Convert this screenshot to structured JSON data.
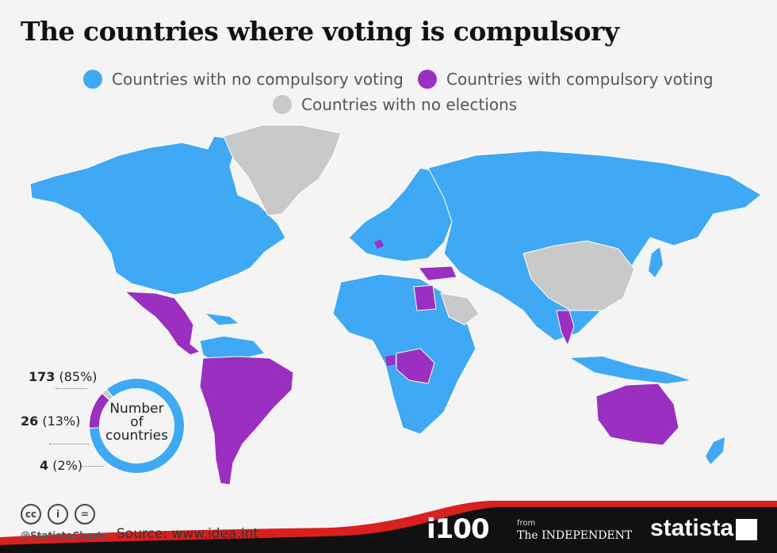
{
  "title": "The countries where voting is compulsory",
  "legend": [
    {
      "label": "Countries with no compulsory voting",
      "color": "#3fa9f5"
    },
    {
      "label": "Countries with compulsory voting",
      "color": "#9a2fc2"
    },
    {
      "label": "Countries with no elections",
      "color": "#c9c9c9"
    }
  ],
  "colors": {
    "no_compulsory": "#3fa9f5",
    "compulsory": "#9a2fc2",
    "no_elections": "#c9c9c9",
    "footer_dark": "#111111",
    "footer_red": "#d8201f"
  },
  "donut": {
    "center_label": [
      "Number",
      "of",
      "countries"
    ],
    "segments": [
      {
        "count": "173",
        "pct": "(85%)",
        "value": 173,
        "color": "#3fa9f5"
      },
      {
        "count": "26",
        "pct": "(13%)",
        "value": 26,
        "color": "#9a2fc2"
      },
      {
        "count": "4",
        "pct": "(2%)",
        "value": 4,
        "color": "#c9c9c9"
      }
    ]
  },
  "footer": {
    "handle": "@StatistaCharts",
    "source": "Source: www.idea.int",
    "i100": "i100",
    "from": "from",
    "independent": "The INDEPENDENT",
    "statista": "statista",
    "cc_icons": [
      "cc-icon",
      "by-icon",
      "nd-icon"
    ]
  }
}
